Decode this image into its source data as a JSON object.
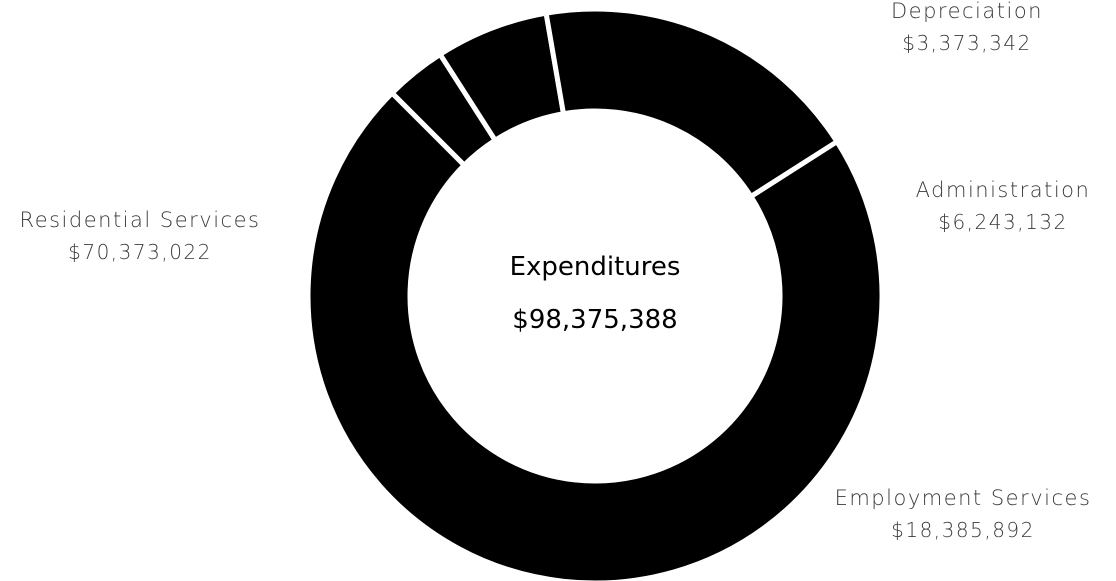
{
  "chart_data": {
    "type": "pie",
    "title": "Expenditures",
    "total": "$98,375,388",
    "hole": "donut",
    "slice_color": "#000000",
    "categories": [
      "Depreciation",
      "Administration",
      "Employment Services",
      "Residential Services"
    ],
    "values": [
      3373342,
      6243132,
      18385892,
      70373022
    ],
    "value_labels": [
      "$3,373,342",
      "$6,243,132",
      "$18,385,892",
      "$70,373,022"
    ]
  }
}
